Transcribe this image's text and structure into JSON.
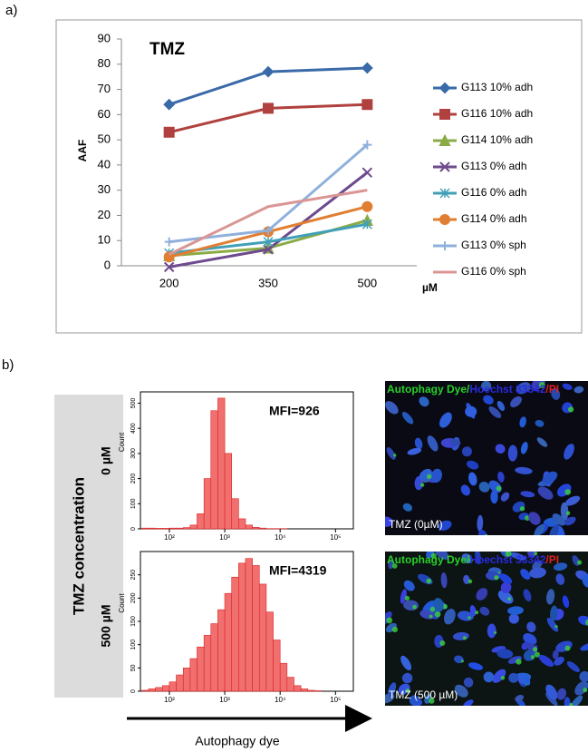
{
  "panel_labels": [
    "a)",
    "b)"
  ],
  "chart_data": [
    {
      "type": "line",
      "title": "TMZ",
      "xlabel": "µM",
      "ylabel": "AAF",
      "categories": [
        "200",
        "350",
        "500"
      ],
      "ylim": [
        0,
        90
      ],
      "yticks": [
        0,
        10,
        20,
        30,
        40,
        50,
        60,
        70,
        80,
        90
      ],
      "legend": "right",
      "series": [
        {
          "name": "G113 10% adh",
          "color": "#3a6aa8",
          "marker": "diamond",
          "values": [
            64,
            77,
            78.5
          ]
        },
        {
          "name": "G116 10% adh",
          "color": "#b0413e",
          "marker": "square",
          "values": [
            53,
            62.5,
            64
          ]
        },
        {
          "name": "G114 10% adh",
          "color": "#8bab45",
          "marker": "triangle",
          "values": [
            4,
            7,
            18
          ]
        },
        {
          "name": "G113 0% adh",
          "color": "#6e4a8e",
          "marker": "x",
          "values": [
            -0.5,
            6.5,
            37
          ]
        },
        {
          "name": "G116 0% adh",
          "color": "#41a0b8",
          "marker": "asterisk",
          "values": [
            5,
            9.5,
            16.5
          ]
        },
        {
          "name": "G114 0% adh",
          "color": "#e07f33",
          "marker": "circle",
          "values": [
            3.5,
            13.5,
            23.5
          ]
        },
        {
          "name": "G113 0% sph",
          "color": "#8fb0dc",
          "marker": "plus",
          "values": [
            9.5,
            14,
            48
          ]
        },
        {
          "name": "G116 0% sph",
          "color": "#d99694",
          "marker": "none",
          "values": [
            4.5,
            23.5,
            30
          ]
        }
      ]
    },
    {
      "type": "histogram",
      "group_label": "0 µM",
      "annotation": "MFI=926",
      "ylabel": "Count",
      "color": "#f07070",
      "log_x": true,
      "bins": [
        32,
        42,
        56,
        75,
        100,
        133,
        178,
        237,
        316,
        422,
        562,
        750,
        1000,
        1334,
        1778,
        2371,
        3162,
        4217,
        5623,
        7499,
        10000,
        13335,
        17783,
        23714,
        31623,
        42170,
        56234,
        74989,
        100000,
        133352,
        177828
      ],
      "values": [
        3,
        3,
        2,
        2,
        3,
        3,
        5,
        15,
        60,
        200,
        470,
        520,
        300,
        120,
        40,
        15,
        6,
        3,
        1,
        1,
        1,
        0,
        0,
        0,
        0,
        0,
        0,
        0,
        0,
        0
      ],
      "xlim": [
        30,
        210000
      ],
      "ylim": [
        0,
        545
      ],
      "xticks": [
        {
          "value": 100,
          "label": "10²"
        },
        {
          "value": 1000,
          "label": "10³"
        },
        {
          "value": 10000,
          "label": "10⁴"
        },
        {
          "value": 100000,
          "label": "10⁵"
        }
      ],
      "yticks": [
        0,
        100,
        200,
        300,
        400,
        500
      ]
    },
    {
      "type": "histogram",
      "group_label": "500 µM",
      "annotation": "MFI=4319",
      "ylabel": "Count",
      "color": "#f07070",
      "log_x": true,
      "bins": [
        32,
        42,
        56,
        75,
        100,
        133,
        178,
        237,
        316,
        422,
        562,
        750,
        1000,
        1334,
        1778,
        2371,
        3162,
        4217,
        5623,
        7499,
        10000,
        13335,
        17783,
        23714,
        31623,
        42170,
        56234,
        74989,
        100000,
        133352,
        177828
      ],
      "values": [
        2,
        5,
        8,
        12,
        20,
        35,
        50,
        70,
        95,
        120,
        145,
        175,
        210,
        245,
        275,
        285,
        270,
        230,
        170,
        110,
        60,
        30,
        12,
        5,
        2,
        1,
        0,
        0,
        0,
        0
      ],
      "xlim": [
        30,
        210000
      ],
      "ylim": [
        0,
        300
      ],
      "xticks": [
        {
          "value": 100,
          "label": "10²"
        },
        {
          "value": 1000,
          "label": "10³"
        },
        {
          "value": 10000,
          "label": "10⁴"
        },
        {
          "value": 100000,
          "label": "10⁵"
        }
      ],
      "yticks": [
        0,
        50,
        100,
        150,
        200,
        250
      ]
    }
  ],
  "row_axis_label": "TMZ concentration",
  "x_axis_label": "Autophagy dye",
  "images": [
    {
      "stain_parts": [
        "Autophagy Dye/",
        "Hoechst 33342",
        "/PI"
      ],
      "caption": "TMZ (0µM)"
    },
    {
      "stain_parts": [
        "Autophagy Dye/",
        "Hoechst 33342",
        "/PI"
      ],
      "caption": "TMZ (500 µM)"
    }
  ]
}
